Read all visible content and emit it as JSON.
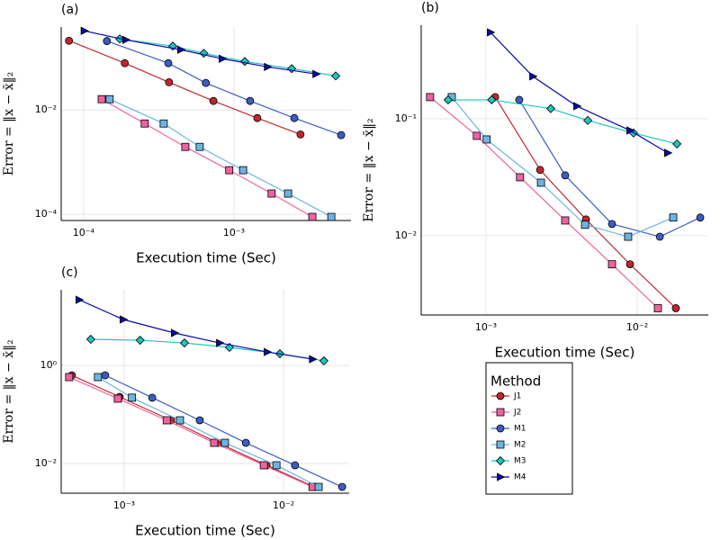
{
  "legend_title": "Method",
  "chart_data": [
    {
      "type": "line",
      "title": "(a)",
      "xlabel": "Execution time (Sec)",
      "ylabel": "Error = ‖x − x̄‖₂",
      "xscale": "log",
      "yscale": "log",
      "grid": true,
      "xlim": [
        7.1e-05,
        0.006
      ],
      "ylim": [
        7.6e-05,
        0.39
      ],
      "xticks": [
        {
          "value": 0.0001,
          "label": "10⁻⁴"
        },
        {
          "value": 0.001,
          "label": "10⁻³"
        }
      ],
      "yticks": [
        {
          "value": 0.01,
          "label": "10⁻²"
        },
        {
          "value": 0.0001,
          "label": "10⁻⁴"
        }
      ],
      "series": [
        {
          "name": "J1",
          "color": "#c0272d",
          "marker": "circle",
          "x": [
            8e-05,
            0.000188,
            0.00037,
            0.00073,
            0.00143,
            0.00277
          ],
          "values": [
            0.213,
            0.079,
            0.034,
            0.0149,
            0.007,
            0.0034
          ]
        },
        {
          "name": "J2",
          "color": "#f062a0",
          "marker": "square",
          "x": [
            0.000132,
            0.000255,
            0.000475,
            0.00093,
            0.00178,
            0.00332
          ],
          "values": [
            0.0161,
            0.0055,
            0.00196,
            0.0007,
            0.00025,
            8.9e-05
          ]
        },
        {
          "name": "M1",
          "color": "#3c5dc6",
          "marker": "circle",
          "x": [
            0.000143,
            0.000366,
            0.00065,
            0.00128,
            0.00252,
            0.00516
          ],
          "values": [
            0.21,
            0.079,
            0.033,
            0.0149,
            0.007,
            0.0033
          ]
        },
        {
          "name": "M2",
          "color": "#6cb4e4",
          "marker": "square",
          "x": [
            0.000149,
            0.000341,
            0.000592,
            0.00115,
            0.00229,
            0.00444
          ],
          "values": [
            0.0161,
            0.0055,
            0.00196,
            0.0007,
            0.00025,
            8.9e-05
          ]
        },
        {
          "name": "M3",
          "color": "#1dc5c0",
          "marker": "diamond",
          "x": [
            0.000174,
            0.000392,
            0.00063,
            0.00118,
            0.00242,
            0.00475
          ],
          "values": [
            0.23,
            0.168,
            0.122,
            0.085,
            0.062,
            0.045
          ]
        },
        {
          "name": "M4",
          "color": "#0a0aa8",
          "marker": "triangle",
          "x": [
            0.000101,
            0.000191,
            0.000443,
            0.000836,
            0.00167,
            0.00351
          ],
          "values": [
            0.329,
            0.221,
            0.143,
            0.096,
            0.067,
            0.049
          ]
        }
      ]
    },
    {
      "type": "line",
      "title": "(b)",
      "xlabel": "Execution time (Sec)",
      "ylabel": "Error = ‖x − x̄‖₂",
      "xscale": "log",
      "yscale": "log",
      "grid": true,
      "xlim": [
        0.000373,
        0.0295
      ],
      "ylim": [
        0.0021,
        0.63
      ],
      "xticks": [
        {
          "value": 0.001,
          "label": "10⁻³"
        },
        {
          "value": 0.01,
          "label": "10⁻²"
        }
      ],
      "yticks": [
        {
          "value": 0.1,
          "label": "10⁻¹"
        },
        {
          "value": 0.01,
          "label": "10⁻²"
        }
      ],
      "series": [
        {
          "name": "J1",
          "color": "#c0272d",
          "marker": "circle",
          "x": [
            0.00115,
            0.00228,
            0.00458,
            0.00896,
            0.018
          ],
          "values": [
            0.153,
            0.0365,
            0.0138,
            0.0057,
            0.0024
          ]
        },
        {
          "name": "J2",
          "color": "#f062a0",
          "marker": "square",
          "x": [
            0.000427,
            0.00087,
            0.00168,
            0.00334,
            0.00681,
            0.0137
          ],
          "values": [
            0.153,
            0.0714,
            0.0316,
            0.0135,
            0.0057,
            0.0024
          ]
        },
        {
          "name": "M1",
          "color": "#3c5dc6",
          "marker": "circle",
          "x": [
            0.00166,
            0.00334,
            0.00681,
            0.0141,
            0.0261
          ],
          "values": [
            0.145,
            0.0328,
            0.0126,
            0.0098,
            0.0143
          ]
        },
        {
          "name": "M2",
          "color": "#6cb4e4",
          "marker": "square",
          "x": [
            0.000594,
            0.00101,
            0.00231,
            0.00452,
            0.00871,
            0.0173
          ],
          "values": [
            0.153,
            0.0665,
            0.0284,
            0.0124,
            0.0098,
            0.0143
          ]
        },
        {
          "name": "M3",
          "color": "#1dc5c0",
          "marker": "diamond",
          "x": [
            0.000562,
            0.00109,
            0.00268,
            0.00471,
            0.00946,
            0.0183
          ],
          "values": [
            0.145,
            0.145,
            0.122,
            0.0966,
            0.0754,
            0.0609
          ]
        },
        {
          "name": "M4",
          "color": "#0a0aa8",
          "marker": "triangle",
          "x": [
            0.00107,
            0.00204,
            0.00399,
            0.00896,
            0.0159
          ],
          "values": [
            0.547,
            0.23,
            0.128,
            0.0794,
            0.051
          ]
        }
      ]
    },
    {
      "type": "line",
      "title": "(c)",
      "xlabel": "Execution time (Sec)",
      "ylabel": "Error = ‖x − x̄‖₂",
      "xscale": "log",
      "yscale": "log",
      "grid": true,
      "xlim": [
        0.000403,
        0.0258
      ],
      "ylim": [
        0.00248,
        34.8
      ],
      "xticks": [
        {
          "value": 0.001,
          "label": "10⁻³"
        },
        {
          "value": 0.01,
          "label": "10⁻²"
        }
      ],
      "yticks": [
        {
          "value": 1,
          "label": "10⁰"
        },
        {
          "value": 0.01,
          "label": "10⁻²"
        }
      ],
      "series": [
        {
          "name": "J1",
          "color": "#c0272d",
          "marker": "circle",
          "x": [
            0.00047,
            0.000937,
            0.00197,
            0.00387,
            0.00782,
            0.0156
          ],
          "values": [
            0.628,
            0.228,
            0.076,
            0.0264,
            0.0092,
            0.00333
          ]
        },
        {
          "name": "J2",
          "color": "#f062a0",
          "marker": "square",
          "x": [
            0.000452,
            0.000913,
            0.00185,
            0.00367,
            0.00752,
            0.0152
          ],
          "values": [
            0.577,
            0.21,
            0.076,
            0.0264,
            0.0092,
            0.00333
          ]
        },
        {
          "name": "M1",
          "color": "#3c5dc6",
          "marker": "circle",
          "x": [
            0.00076,
            0.0015,
            0.00298,
            0.0058,
            0.0118,
            0.0233
          ],
          "values": [
            0.628,
            0.22,
            0.076,
            0.0264,
            0.0092,
            0.00333
          ]
        },
        {
          "name": "M2",
          "color": "#6cb4e4",
          "marker": "square",
          "x": [
            0.000685,
            0.00112,
            0.00224,
            0.00429,
            0.00902,
            0.0166
          ],
          "values": [
            0.577,
            0.22,
            0.076,
            0.0264,
            0.0092,
            0.00333
          ]
        },
        {
          "name": "M3",
          "color": "#1dc5c0",
          "marker": "diamond",
          "x": [
            0.000618,
            0.00126,
            0.00239,
            0.00458,
            0.00948,
            0.0179
          ],
          "values": [
            3.41,
            3.26,
            2.87,
            2.33,
            1.73,
            1.24
          ]
        },
        {
          "name": "M4",
          "color": "#0a0aa8",
          "marker": "triangle",
          "x": [
            0.000522,
            0.000987,
            0.00207,
            0.00397,
            0.0079,
            0.0152
          ],
          "values": [
            21.8,
            8.63,
            4.58,
            2.87,
            1.88,
            1.34
          ]
        }
      ]
    }
  ]
}
